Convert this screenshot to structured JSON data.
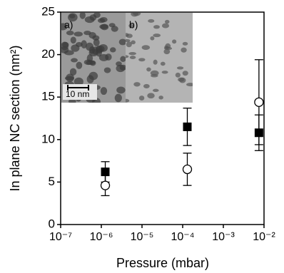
{
  "chart_data": {
    "type": "scatter",
    "xlabel": "Pressure (mbar)",
    "ylabel": "In plane NC section (nm²)",
    "xscale": "log",
    "xlim": [
      1e-07,
      0.01
    ],
    "xticks": [
      {
        "value": 1e-07,
        "label": "10⁻⁷"
      },
      {
        "value": 1e-06,
        "label": "10⁻⁶"
      },
      {
        "value": 1e-05,
        "label": "10⁻⁵"
      },
      {
        "value": 0.0001,
        "label": "10⁻⁴"
      },
      {
        "value": 0.001,
        "label": "10⁻³"
      },
      {
        "value": 0.01,
        "label": "10⁻²"
      }
    ],
    "ylim": [
      0,
      25
    ],
    "yticks": [
      0,
      5,
      10,
      15,
      20,
      25
    ],
    "inset_labels": [
      "a)",
      "b)",
      "10 nm"
    ],
    "series": [
      {
        "marker": "square",
        "color": "#000000",
        "x": [
          1.25e-06,
          0.00013,
          0.0075
        ],
        "values": [
          6.2,
          11.5,
          10.8
        ],
        "errors": [
          1.2,
          2.2,
          2.1
        ]
      },
      {
        "marker": "circle",
        "color": "#000000",
        "x": [
          1.25e-06,
          0.00013,
          0.0075
        ],
        "values": [
          4.6,
          6.5,
          14.4
        ],
        "errors": [
          1.2,
          1.9,
          5.0
        ]
      }
    ]
  }
}
